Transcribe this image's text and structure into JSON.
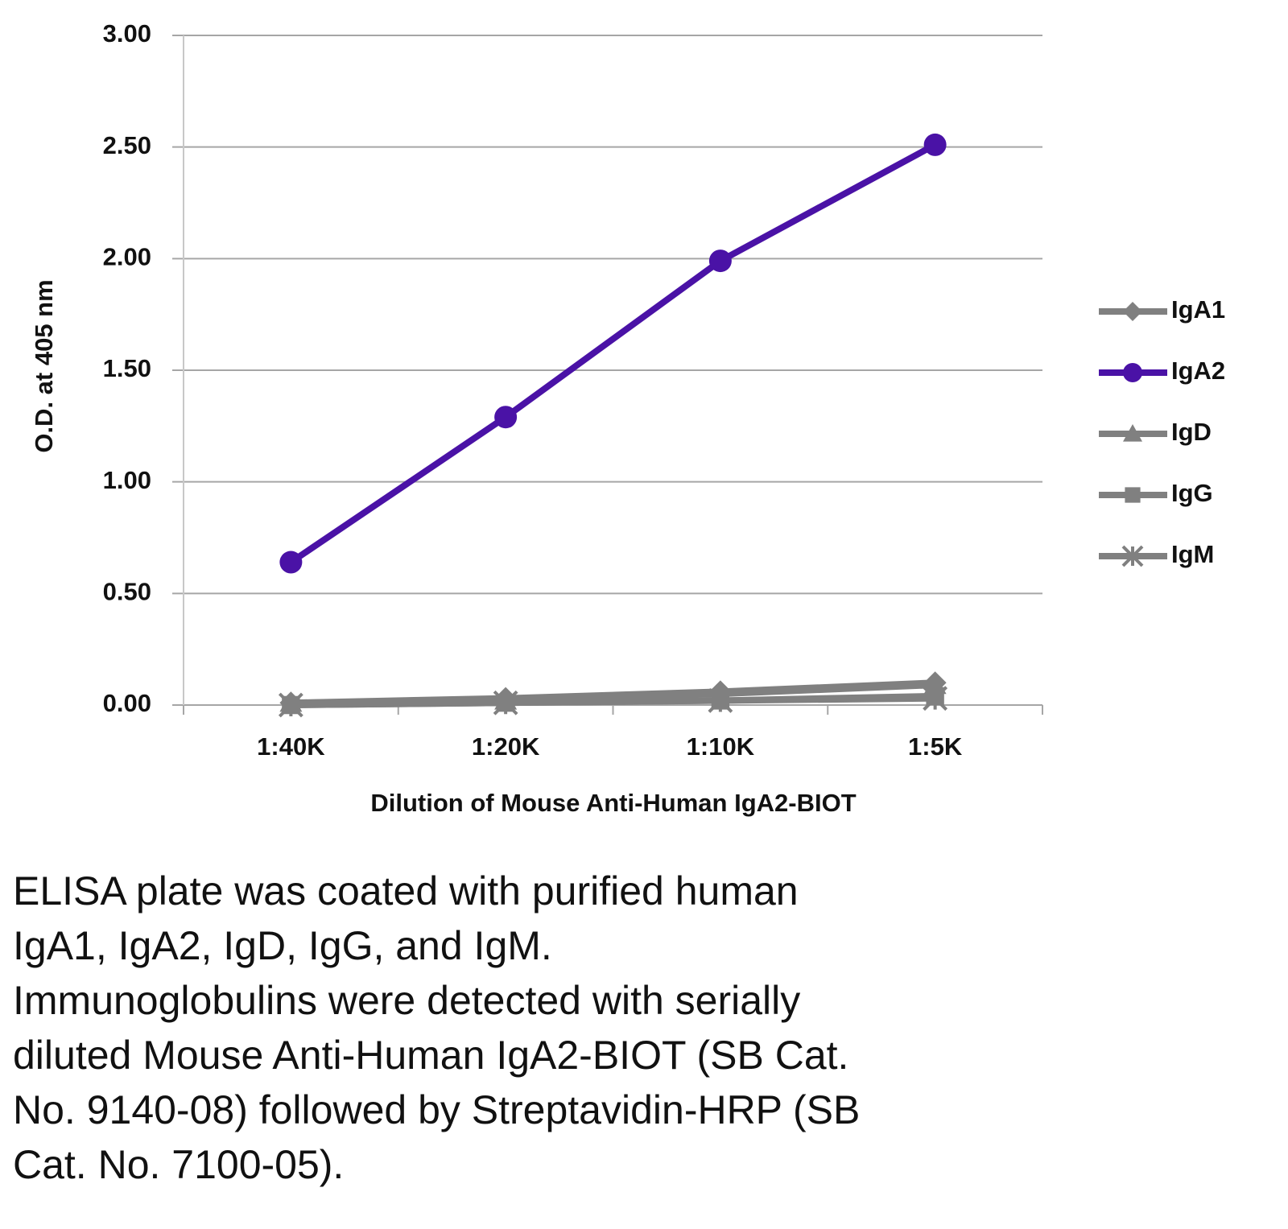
{
  "chart_data": {
    "type": "line",
    "y_label": "O.D. at 405 nm",
    "x_label": "Dilution of Mouse Anti-Human IgA2-BIOT",
    "categories": [
      "1:40K",
      "1:20K",
      "1:10K",
      "1:5K"
    ],
    "series": [
      {
        "name": "IgA1",
        "color": "#808080",
        "marker": "diamond",
        "values": [
          0.01,
          0.03,
          0.06,
          0.1
        ]
      },
      {
        "name": "IgA2",
        "color": "#4a12a6",
        "marker": "circle",
        "values": [
          0.64,
          1.29,
          1.99,
          2.51
        ]
      },
      {
        "name": "IgD",
        "color": "#808080",
        "marker": "triangle",
        "values": [
          0.01,
          0.02,
          0.05,
          0.09
        ]
      },
      {
        "name": "IgG",
        "color": "#808080",
        "marker": "square",
        "values": [
          0.0,
          0.01,
          0.02,
          0.04
        ]
      },
      {
        "name": "IgM",
        "color": "#808080",
        "marker": "star",
        "values": [
          0.0,
          0.01,
          0.02,
          0.03
        ]
      }
    ],
    "ylim": [
      0,
      3
    ],
    "yticks": [
      {
        "value": 0,
        "label": "0.00"
      },
      {
        "value": 0.5,
        "label": "0.50"
      },
      {
        "value": 1,
        "label": "1.00"
      },
      {
        "value": 1.5,
        "label": "1.50"
      },
      {
        "value": 2,
        "label": "2.00"
      },
      {
        "value": 2.5,
        "label": "2.50"
      },
      {
        "value": 3,
        "label": "3.00"
      }
    ],
    "grid": true,
    "legend": "right",
    "caption": [
      "ELISA plate was coated with purified human",
      "IgA1, IgA2, IgD, IgG, and IgM.",
      "Immunoglobulins were detected with serially",
      "diluted Mouse Anti-Human IgA2-BIOT (SB Cat.",
      "No. 9140-08) followed by Streptavidin-HRP (SB",
      "Cat. No. 7100-05)."
    ]
  }
}
